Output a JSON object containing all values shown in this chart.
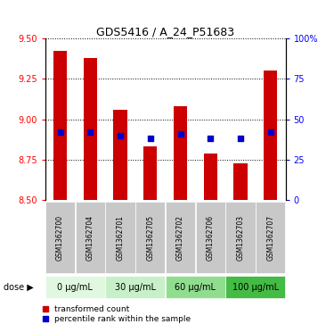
{
  "title": "GDS5416 / A_24_P51683",
  "samples": [
    "GSM1362700",
    "GSM1362704",
    "GSM1362701",
    "GSM1362705",
    "GSM1362702",
    "GSM1362706",
    "GSM1362703",
    "GSM1362707"
  ],
  "bar_values": [
    9.42,
    9.38,
    9.06,
    8.83,
    9.08,
    8.79,
    8.73,
    9.3
  ],
  "percentile_values": [
    8.92,
    8.92,
    8.9,
    8.88,
    8.91,
    8.88,
    8.88,
    8.92
  ],
  "y_min": 8.5,
  "y_max": 9.5,
  "y_ticks": [
    8.5,
    8.75,
    9.0,
    9.25,
    9.5
  ],
  "right_y_ticks": [
    0,
    25,
    50,
    75,
    100
  ],
  "bar_color": "#CC0000",
  "percentile_color": "#0000CC",
  "dose_labels": [
    "0 μg/mL",
    "30 μg/mL",
    "60 μg/mL",
    "100 μg/mL"
  ],
  "dose_colors": [
    "#E0F8E0",
    "#C8F0C8",
    "#90DD90",
    "#44BB44"
  ],
  "legend_labels": [
    "transformed count",
    "percentile rank within the sample"
  ],
  "bar_width": 0.45
}
